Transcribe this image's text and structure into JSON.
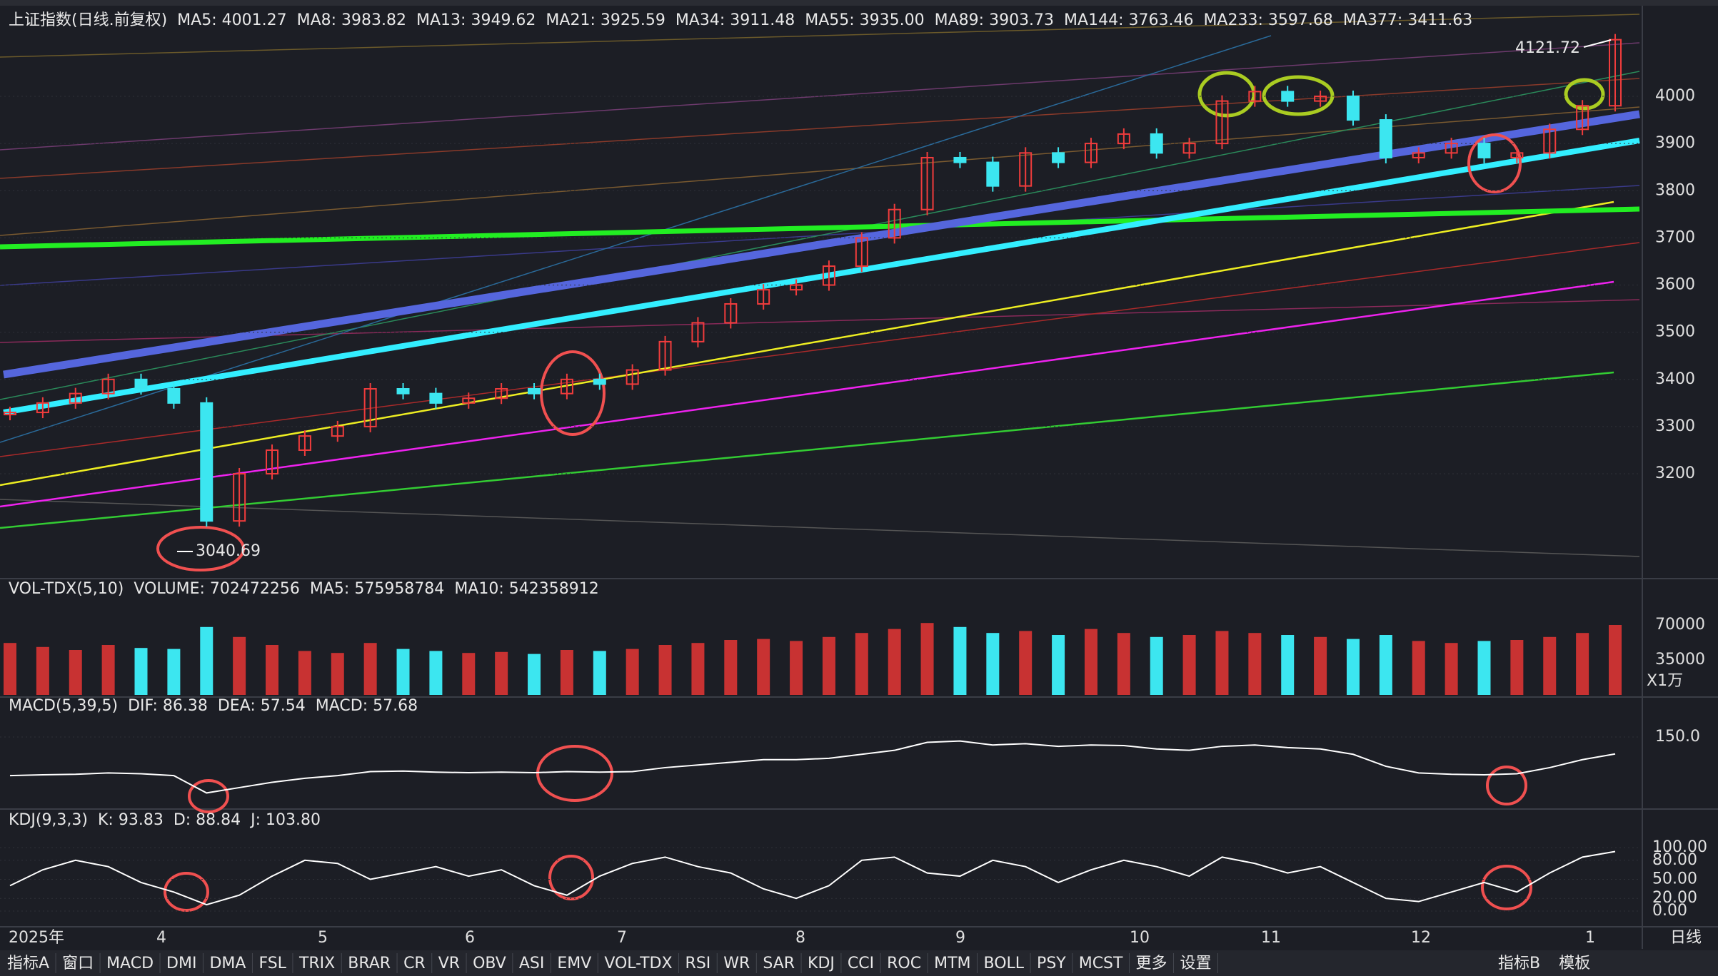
{
  "header": {
    "title": "上证指数(日线.前复权)",
    "ma": [
      {
        "label": "MA5: 4001.27",
        "color": "#ffffff"
      },
      {
        "label": "MA8: 3983.82",
        "color": "#f2e600"
      },
      {
        "label": "MA13: 3949.62",
        "color": "#ff33ff"
      },
      {
        "label": "MA21: 3925.59",
        "color": "#33e633"
      },
      {
        "label": "MA34: 3911.48",
        "color": "#d8d8d8"
      },
      {
        "label": "MA55: 3935.00",
        "color": "#3399ff"
      },
      {
        "label": "MA89: 3903.73",
        "color": "#ffffff"
      },
      {
        "label": "MA144: 3763.46",
        "color": "#f2e600"
      },
      {
        "label": "MA233: 3597.68",
        "color": "#ff33ff"
      },
      {
        "label": "MA377: 3411.63",
        "color": "#33e633"
      }
    ]
  },
  "price_panel": {
    "ticks": [
      4000,
      3900,
      3800,
      3700,
      3600,
      3500,
      3400,
      3300,
      3200
    ],
    "high_label": "4121.72",
    "low_label": "3040.69",
    "closes": [
      3330,
      3350,
      3370,
      3400,
      3380,
      3350,
      3100,
      3200,
      3250,
      3280,
      3300,
      3380,
      3370,
      3350,
      3360,
      3380,
      3370,
      3400,
      3390,
      3420,
      3480,
      3520,
      3560,
      3590,
      3600,
      3640,
      3700,
      3760,
      3870,
      3860,
      3810,
      3880,
      3860,
      3900,
      3920,
      3880,
      3900,
      3990,
      4010,
      3990,
      4000,
      3950,
      3870,
      3880,
      3900,
      3870,
      3880,
      3930,
      3980,
      4120
    ]
  },
  "volume_panel": {
    "title": "VOL-TDX(5,10)",
    "volume": "VOLUME: 702472256",
    "ma5": "MA5: 575958784",
    "ma10": "MA10: 542358912",
    "ticks": [
      70000,
      35000
    ],
    "unit": "X1万",
    "values": [
      52000,
      48000,
      45000,
      50000,
      47000,
      46000,
      68000,
      58000,
      50000,
      44000,
      42000,
      52000,
      46000,
      44000,
      42000,
      43000,
      41000,
      45000,
      44000,
      46000,
      50000,
      52000,
      55000,
      56000,
      54000,
      58000,
      62000,
      66000,
      72000,
      68000,
      62000,
      64000,
      60000,
      66000,
      62000,
      58000,
      60000,
      64000,
      62000,
      60000,
      58000,
      56000,
      60000,
      54000,
      52000,
      54000,
      55000,
      58000,
      62000,
      70000
    ]
  },
  "macd_panel": {
    "title": "MACD(5,39,5)",
    "dif": "DIF: 86.38",
    "dea": "DEA: 57.54",
    "macd": "MACD: 57.68",
    "ticks": [
      {
        "value": 150,
        "label": "150.0"
      }
    ],
    "values": [
      5,
      8,
      10,
      15,
      12,
      5,
      -60,
      -40,
      -20,
      -5,
      5,
      20,
      22,
      18,
      16,
      18,
      16,
      20,
      18,
      20,
      35,
      45,
      55,
      65,
      65,
      70,
      85,
      100,
      130,
      135,
      120,
      125,
      115,
      120,
      118,
      105,
      100,
      115,
      120,
      110,
      105,
      85,
      40,
      15,
      10,
      8,
      12,
      35,
      65,
      86.38
    ]
  },
  "kdj_panel": {
    "title": "KDJ(9,3,3)",
    "k": "K: 93.83",
    "d": "D: 88.84",
    "j": "J: 103.80",
    "ticks": [
      {
        "value": 100,
        "label": "100.00"
      },
      {
        "value": 80,
        "label": "80.00"
      },
      {
        "value": 50,
        "label": "50.00"
      },
      {
        "value": 20,
        "label": "20.00"
      },
      {
        "value": 0,
        "label": "0.00"
      }
    ],
    "values": [
      40,
      65,
      80,
      70,
      45,
      30,
      10,
      25,
      55,
      80,
      75,
      50,
      60,
      70,
      55,
      65,
      40,
      25,
      55,
      75,
      85,
      70,
      60,
      35,
      20,
      40,
      80,
      85,
      60,
      55,
      80,
      70,
      45,
      65,
      80,
      70,
      55,
      85,
      75,
      60,
      70,
      45,
      20,
      15,
      30,
      45,
      30,
      60,
      85,
      93.83
    ]
  },
  "date_axis": [
    "2025年",
    "4",
    "5",
    "6",
    "7",
    "8",
    "9",
    "10",
    "11",
    "12",
    "1"
  ],
  "period": "日线",
  "tabs_left": [
    "指标A",
    "窗口",
    "MACD",
    "DMI",
    "DMA",
    "FSL",
    "TRIX",
    "BRAR",
    "CR",
    "VR",
    "OBV",
    "ASI",
    "EMV",
    "VOL-TDX",
    "RSI",
    "WR",
    "SAR",
    "KDJ",
    "CCI",
    "ROC",
    "MTM",
    "BOLL",
    "PSY",
    "MCST",
    "更多",
    "设置"
  ],
  "active_tab": "KDJ",
  "tabs_right": [
    "指标B",
    "模板"
  ]
}
